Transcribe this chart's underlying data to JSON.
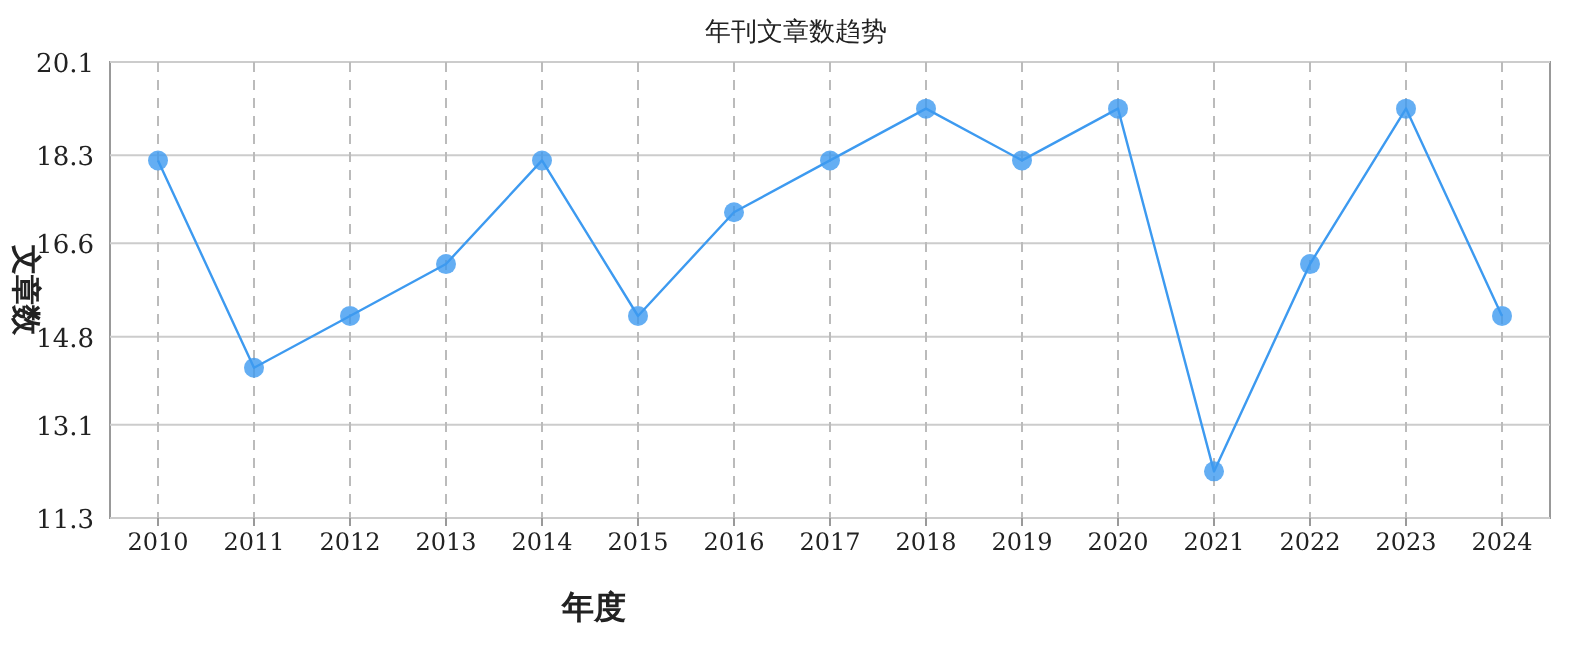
{
  "chart_data": {
    "type": "line",
    "title": "年刊文章数趋势",
    "xlabel": "年度",
    "ylabel": "文章数",
    "categories": [
      "2010",
      "2011",
      "2012",
      "2013",
      "2014",
      "2015",
      "2016",
      "2017",
      "2018",
      "2019",
      "2020",
      "2021",
      "2022",
      "2023",
      "2024"
    ],
    "series": [
      {
        "color": "#3d9af0",
        "values": [
          18.2,
          14.2,
          15.2,
          16.2,
          18.2,
          15.2,
          17.2,
          18.2,
          19.2,
          18.2,
          19.2,
          12.2,
          16.2,
          19.2,
          15.2
        ]
      }
    ],
    "ylim": [
      11.3,
      20.1
    ],
    "yticks": [
      11.3,
      13.1,
      14.8,
      16.6,
      18.3,
      20.1
    ],
    "grid": true,
    "marker": "circle",
    "line_style": "solid"
  }
}
